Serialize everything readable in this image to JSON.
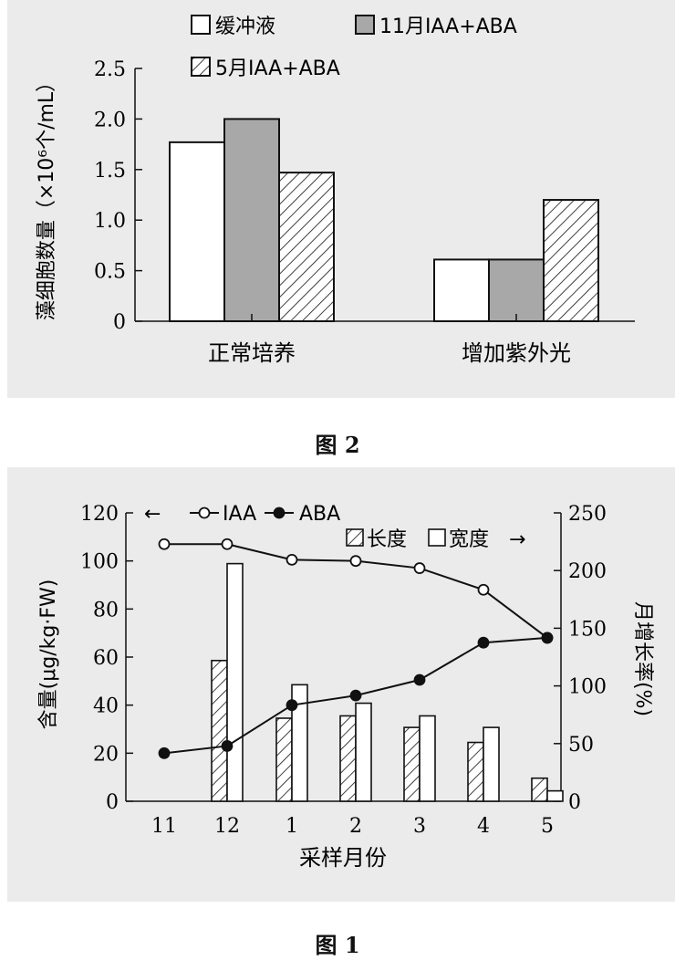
{
  "figure2": {
    "caption": "图 2",
    "chart_data": {
      "type": "bar",
      "ylabel": "藻细胞数量（×10⁶个/mL）",
      "xlabel": "",
      "ylim": [
        0,
        2.5
      ],
      "yticks": [
        "0",
        "0.5",
        "1.0",
        "1.5",
        "2.0",
        "2.5"
      ],
      "categories": [
        "正常培养",
        "增加紫外光"
      ],
      "series": [
        {
          "name": "缓冲液",
          "fill": "white",
          "values": [
            1.77,
            0.61
          ]
        },
        {
          "name": "11月IAA+ABA",
          "fill": "gray",
          "values": [
            2.0,
            0.61
          ]
        },
        {
          "name": "5月IAA+ABA",
          "fill": "hatch",
          "values": [
            1.47,
            1.2
          ]
        }
      ],
      "legend_position": "top-right"
    }
  },
  "figure1": {
    "caption": "图 1",
    "chart_data": {
      "type": "bar+line",
      "xlabel": "采样月份",
      "categories": [
        "11",
        "12",
        "1",
        "2",
        "3",
        "4",
        "5"
      ],
      "y_left": {
        "label": "含量(μg/kg·FW)",
        "lim": [
          0,
          120
        ],
        "ticks": [
          "0",
          "20",
          "40",
          "60",
          "80",
          "100",
          "120"
        ]
      },
      "y_right": {
        "label": "月增长率(%)",
        "lim": [
          0,
          250
        ],
        "ticks": [
          "0",
          "50",
          "100",
          "150",
          "200",
          "250"
        ]
      },
      "lines": [
        {
          "name": "IAA",
          "marker": "open-circle",
          "axis": "left",
          "values": [
            107,
            107,
            100.5,
            100,
            97,
            88,
            68
          ]
        },
        {
          "name": "ABA",
          "marker": "filled-circle",
          "axis": "left",
          "values": [
            20,
            23,
            40,
            44,
            50.5,
            66,
            68
          ]
        }
      ],
      "bars": [
        {
          "name": "长度",
          "fill": "hatch",
          "axis": "right",
          "values": [
            null,
            122,
            72,
            74,
            64,
            51,
            20
          ]
        },
        {
          "name": "宽度",
          "fill": "white",
          "axis": "right",
          "values": [
            null,
            206,
            101,
            85,
            74,
            64,
            9
          ]
        }
      ],
      "legend_arrows": {
        "left_arrow": "←",
        "right_arrow": "→"
      }
    }
  }
}
